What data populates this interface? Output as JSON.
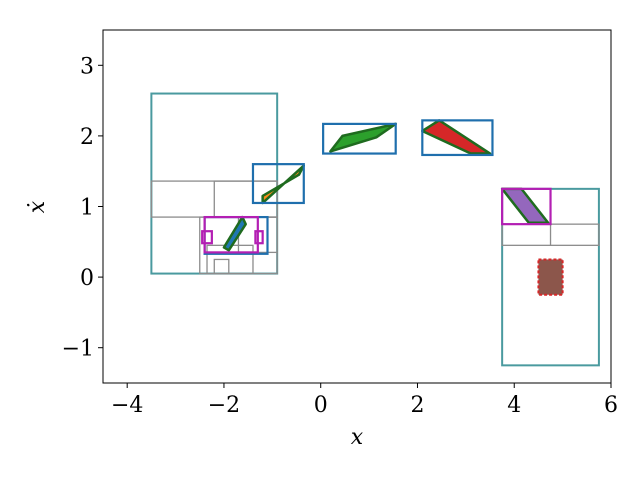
{
  "chart_data": {
    "type": "scatter",
    "title": "",
    "xlabel": "x",
    "ylabel": "ẋ",
    "xlim": [
      -4.5,
      6.0
    ],
    "ylim": [
      -1.5,
      3.5
    ],
    "xticks": [
      -4,
      -2,
      0,
      2,
      4,
      6
    ],
    "yticks": [
      -1,
      0,
      1,
      2,
      3
    ],
    "xtick_labels": [
      "−4",
      "−2",
      "0",
      "2",
      "4",
      "6"
    ],
    "ytick_labels": [
      "−1",
      "0",
      "1",
      "2",
      "3"
    ],
    "grid": false,
    "legend": "none",
    "colors": {
      "partition_outer": "#4a9a9f",
      "partition_inner": "#8c8c8c",
      "box_blue": "#1f6fad",
      "box_magenta": "#b31fb3",
      "polygon_edge": "#1f6b1f",
      "fill_green": "#2ca02c",
      "fill_orange": "#ff8c1a",
      "fill_red": "#d62728",
      "fill_purple": "#9467bd",
      "fill_brown": "#8c564b",
      "fill_teal": "#1f77b4",
      "dashed_red": "#d62728"
    },
    "rectangles": [
      {
        "kind": "partition_outer",
        "x0": -3.5,
        "x1": -0.9,
        "y0": 0.05,
        "y1": 2.6
      },
      {
        "kind": "partition_inner",
        "x0": -3.5,
        "x1": -0.9,
        "y0": 0.85,
        "y1": 1.36
      },
      {
        "kind": "partition_inner",
        "x0": -2.2,
        "x1": -0.9,
        "y0": 0.85,
        "y1": 1.36
      },
      {
        "kind": "partition_inner",
        "x0": -2.5,
        "x1": -0.9,
        "y0": 0.05,
        "y1": 0.85
      },
      {
        "kind": "partition_inner",
        "x0": -2.35,
        "x1": -1.4,
        "y0": 0.05,
        "y1": 0.45
      },
      {
        "kind": "partition_inner",
        "x0": -2.2,
        "x1": -1.9,
        "y0": 0.05,
        "y1": 0.25
      },
      {
        "kind": "partition_inner",
        "x0": -1.7,
        "x1": -0.9,
        "y0": 0.35,
        "y1": 0.85
      },
      {
        "kind": "partition_outer",
        "x0": 3.75,
        "x1": 5.75,
        "y0": -1.25,
        "y1": 1.25
      },
      {
        "kind": "partition_inner",
        "x0": 3.75,
        "x1": 5.75,
        "y0": 0.45,
        "y1": 0.75
      },
      {
        "kind": "partition_inner",
        "x0": 4.75,
        "x1": 4.75,
        "y0": 0.45,
        "y1": 0.75
      },
      {
        "kind": "box_blue",
        "x0": -2.4,
        "x1": -1.1,
        "y0": 0.33,
        "y1": 0.85
      },
      {
        "kind": "box_blue",
        "x0": -1.4,
        "x1": -0.35,
        "y0": 1.05,
        "y1": 1.6
      },
      {
        "kind": "box_blue",
        "x0": 0.05,
        "x1": 1.55,
        "y0": 1.75,
        "y1": 2.17
      },
      {
        "kind": "box_blue",
        "x0": 2.1,
        "x1": 3.55,
        "y0": 1.73,
        "y1": 2.22
      },
      {
        "kind": "box_magenta",
        "x0": -2.4,
        "x1": -1.3,
        "y0": 0.35,
        "y1": 0.85
      },
      {
        "kind": "box_magenta",
        "x0": -2.45,
        "x1": -2.25,
        "y0": 0.48,
        "y1": 0.65
      },
      {
        "kind": "box_magenta",
        "x0": -1.35,
        "x1": -1.2,
        "y0": 0.48,
        "y1": 0.65
      },
      {
        "kind": "box_magenta",
        "x0": 3.75,
        "x1": 4.75,
        "y0": 0.75,
        "y1": 1.25
      }
    ],
    "polygons": [
      {
        "fill": "fill_teal",
        "points": [
          [
            -2.0,
            0.42
          ],
          [
            -1.62,
            0.85
          ],
          [
            -1.55,
            0.75
          ],
          [
            -1.9,
            0.38
          ]
        ]
      },
      {
        "fill": "fill_orange",
        "points": [
          [
            -1.2,
            1.05
          ],
          [
            -0.35,
            1.58
          ],
          [
            -0.45,
            1.45
          ],
          [
            -1.2,
            1.15
          ]
        ]
      },
      {
        "fill": "fill_green",
        "points": [
          [
            0.2,
            1.78
          ],
          [
            0.45,
            2.0
          ],
          [
            1.55,
            2.17
          ],
          [
            1.15,
            1.98
          ]
        ]
      },
      {
        "fill": "fill_red",
        "points": [
          [
            2.1,
            2.07
          ],
          [
            2.45,
            2.22
          ],
          [
            3.5,
            1.75
          ],
          [
            3.1,
            1.75
          ]
        ]
      },
      {
        "fill": "fill_purple",
        "points": [
          [
            3.75,
            1.25
          ],
          [
            4.15,
            1.25
          ],
          [
            4.7,
            0.77
          ],
          [
            4.3,
            0.77
          ]
        ]
      }
    ],
    "dashed_regions": [
      {
        "fill": "fill_brown",
        "edge": "dashed_red",
        "x0": 4.5,
        "x1": 5.0,
        "y0": -0.25,
        "y1": 0.25
      }
    ]
  }
}
